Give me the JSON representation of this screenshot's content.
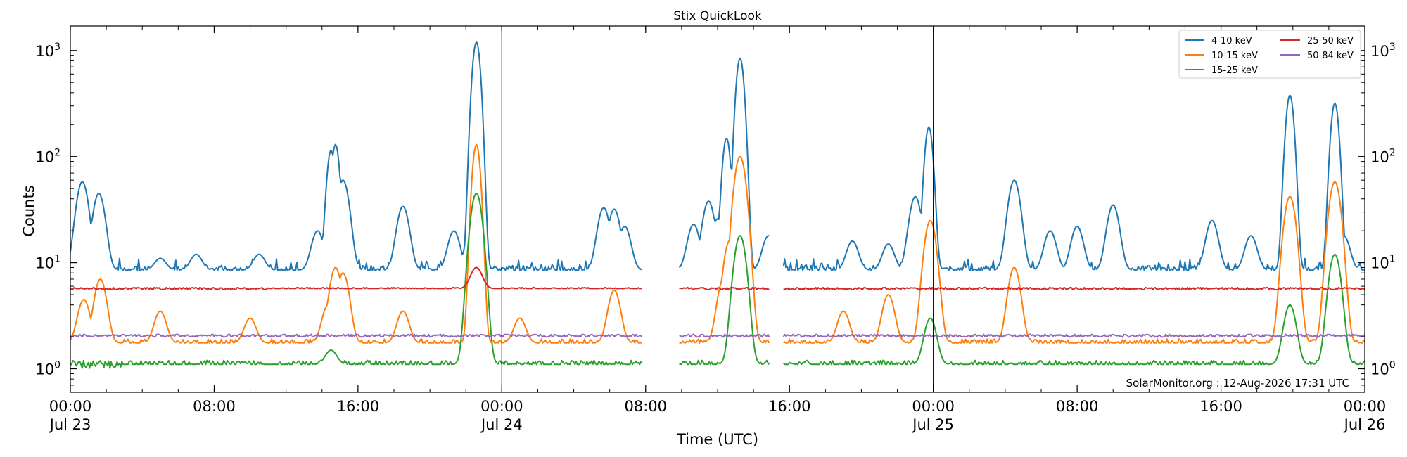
{
  "chart_data": {
    "type": "line",
    "title": "Stix QuickLook",
    "xlabel": "Time (UTC)",
    "ylabel": "Counts",
    "yscale": "log",
    "ylim": [
      0.6,
      1700
    ],
    "xlim": [
      "2026-07-23 00:00",
      "2026-07-26 00:00"
    ],
    "y_ticks": [
      {
        "value": 1,
        "base": "10",
        "exp": "0"
      },
      {
        "value": 10,
        "base": "10",
        "exp": "1"
      },
      {
        "value": 100,
        "base": "10",
        "exp": "2"
      },
      {
        "value": 1000,
        "base": "10",
        "exp": "3"
      }
    ],
    "x_ticks": [
      {
        "time": "2026-07-23 00:00",
        "line1": "00:00",
        "line2": "Jul 23"
      },
      {
        "time": "2026-07-23 08:00",
        "line1": "08:00",
        "line2": ""
      },
      {
        "time": "2026-07-23 16:00",
        "line1": "16:00",
        "line2": ""
      },
      {
        "time": "2026-07-24 00:00",
        "line1": "00:00",
        "line2": "Jul 24"
      },
      {
        "time": "2026-07-24 08:00",
        "line1": "08:00",
        "line2": ""
      },
      {
        "time": "2026-07-24 16:00",
        "line1": "16:00",
        "line2": ""
      },
      {
        "time": "2026-07-25 00:00",
        "line1": "00:00",
        "line2": "Jul 25"
      },
      {
        "time": "2026-07-25 08:00",
        "line1": "08:00",
        "line2": ""
      },
      {
        "time": "2026-07-25 16:00",
        "line1": "16:00",
        "line2": ""
      },
      {
        "time": "2026-07-26 00:00",
        "line1": "00:00",
        "line2": "Jul 26"
      }
    ],
    "vertical_lines": [
      "2026-07-24 00:00",
      "2026-07-25 00:00"
    ],
    "data_gaps": [
      [
        "2026-07-24 07:50",
        "2026-07-24 09:50"
      ],
      [
        "2026-07-24 14:55",
        "2026-07-24 15:40"
      ]
    ],
    "legend_position": "top-right",
    "grid": false,
    "series": [
      {
        "name": "4-10 keV",
        "color": "#1f77b4",
        "baseline": 8.5,
        "points": [
          [
            "2026-07-23 00:40",
            58
          ],
          [
            "2026-07-23 01:35",
            45
          ],
          [
            "2026-07-23 05:00",
            11
          ],
          [
            "2026-07-23 07:00",
            12
          ],
          [
            "2026-07-23 10:30",
            12
          ],
          [
            "2026-07-23 13:45",
            20
          ],
          [
            "2026-07-23 14:30",
            115
          ],
          [
            "2026-07-23 14:45",
            130
          ],
          [
            "2026-07-23 15:10",
            60
          ],
          [
            "2026-07-23 18:30",
            34
          ],
          [
            "2026-07-23 21:20",
            20
          ],
          [
            "2026-07-23 22:20",
            22
          ],
          [
            "2026-07-23 22:35",
            1200
          ],
          [
            "2026-07-24 05:40",
            33
          ],
          [
            "2026-07-24 06:15",
            32
          ],
          [
            "2026-07-24 06:50",
            22
          ],
          [
            "2026-07-24 10:40",
            23
          ],
          [
            "2026-07-24 11:30",
            38
          ],
          [
            "2026-07-24 12:00",
            26
          ],
          [
            "2026-07-24 12:30",
            150
          ],
          [
            "2026-07-24 13:00",
            65
          ],
          [
            "2026-07-24 13:15",
            850
          ],
          [
            "2026-07-24 14:50",
            18
          ],
          [
            "2026-07-24 19:30",
            16
          ],
          [
            "2026-07-24 21:30",
            15
          ],
          [
            "2026-07-24 23:00",
            42
          ],
          [
            "2026-07-24 23:45",
            190
          ],
          [
            "2026-07-25 04:30",
            60
          ],
          [
            "2026-07-25 06:30",
            20
          ],
          [
            "2026-07-25 08:00",
            22
          ],
          [
            "2026-07-25 10:00",
            35
          ],
          [
            "2026-07-25 15:30",
            25
          ],
          [
            "2026-07-25 17:40",
            18
          ],
          [
            "2026-07-25 19:50",
            380
          ],
          [
            "2026-07-25 22:20",
            320
          ],
          [
            "2026-07-25 22:50",
            18
          ]
        ]
      },
      {
        "name": "10-15 keV",
        "color": "#ff7f0e",
        "baseline": 1.75,
        "points": [
          [
            "2026-07-23 00:45",
            4.5
          ],
          [
            "2026-07-23 01:40",
            7
          ],
          [
            "2026-07-23 05:00",
            3.5
          ],
          [
            "2026-07-23 10:00",
            3
          ],
          [
            "2026-07-23 14:20",
            4
          ],
          [
            "2026-07-23 14:45",
            9
          ],
          [
            "2026-07-23 15:10",
            8
          ],
          [
            "2026-07-23 18:30",
            3.5
          ],
          [
            "2026-07-23 22:35",
            130
          ],
          [
            "2026-07-24 01:00",
            3
          ],
          [
            "2026-07-24 06:15",
            5.5
          ],
          [
            "2026-07-24 12:20",
            7
          ],
          [
            "2026-07-24 12:40",
            16
          ],
          [
            "2026-07-24 13:15",
            100
          ],
          [
            "2026-07-24 13:30",
            3
          ],
          [
            "2026-07-24 19:00",
            3.5
          ],
          [
            "2026-07-24 21:30",
            5
          ],
          [
            "2026-07-24 23:50",
            25
          ],
          [
            "2026-07-25 04:30",
            9
          ],
          [
            "2026-07-25 19:50",
            42
          ],
          [
            "2026-07-25 22:20",
            58
          ]
        ]
      },
      {
        "name": "15-25 keV",
        "color": "#2ca02c",
        "baseline": 1.1,
        "points": [
          [
            "2026-07-23 14:30",
            1.5
          ],
          [
            "2026-07-23 22:35",
            45
          ],
          [
            "2026-07-24 13:15",
            18
          ],
          [
            "2026-07-24 23:50",
            3
          ],
          [
            "2026-07-25 19:50",
            4
          ],
          [
            "2026-07-25 22:20",
            12
          ]
        ]
      },
      {
        "name": "25-50 keV",
        "color": "#d62728",
        "baseline": 5.7,
        "points": [
          [
            "2026-07-23 22:35",
            9
          ]
        ]
      },
      {
        "name": "50-84 keV",
        "color": "#9467bd",
        "baseline": 2.05,
        "points": []
      }
    ],
    "annotation": "SolarMonitor.org : 12-Aug-2026 17:31 UTC"
  }
}
